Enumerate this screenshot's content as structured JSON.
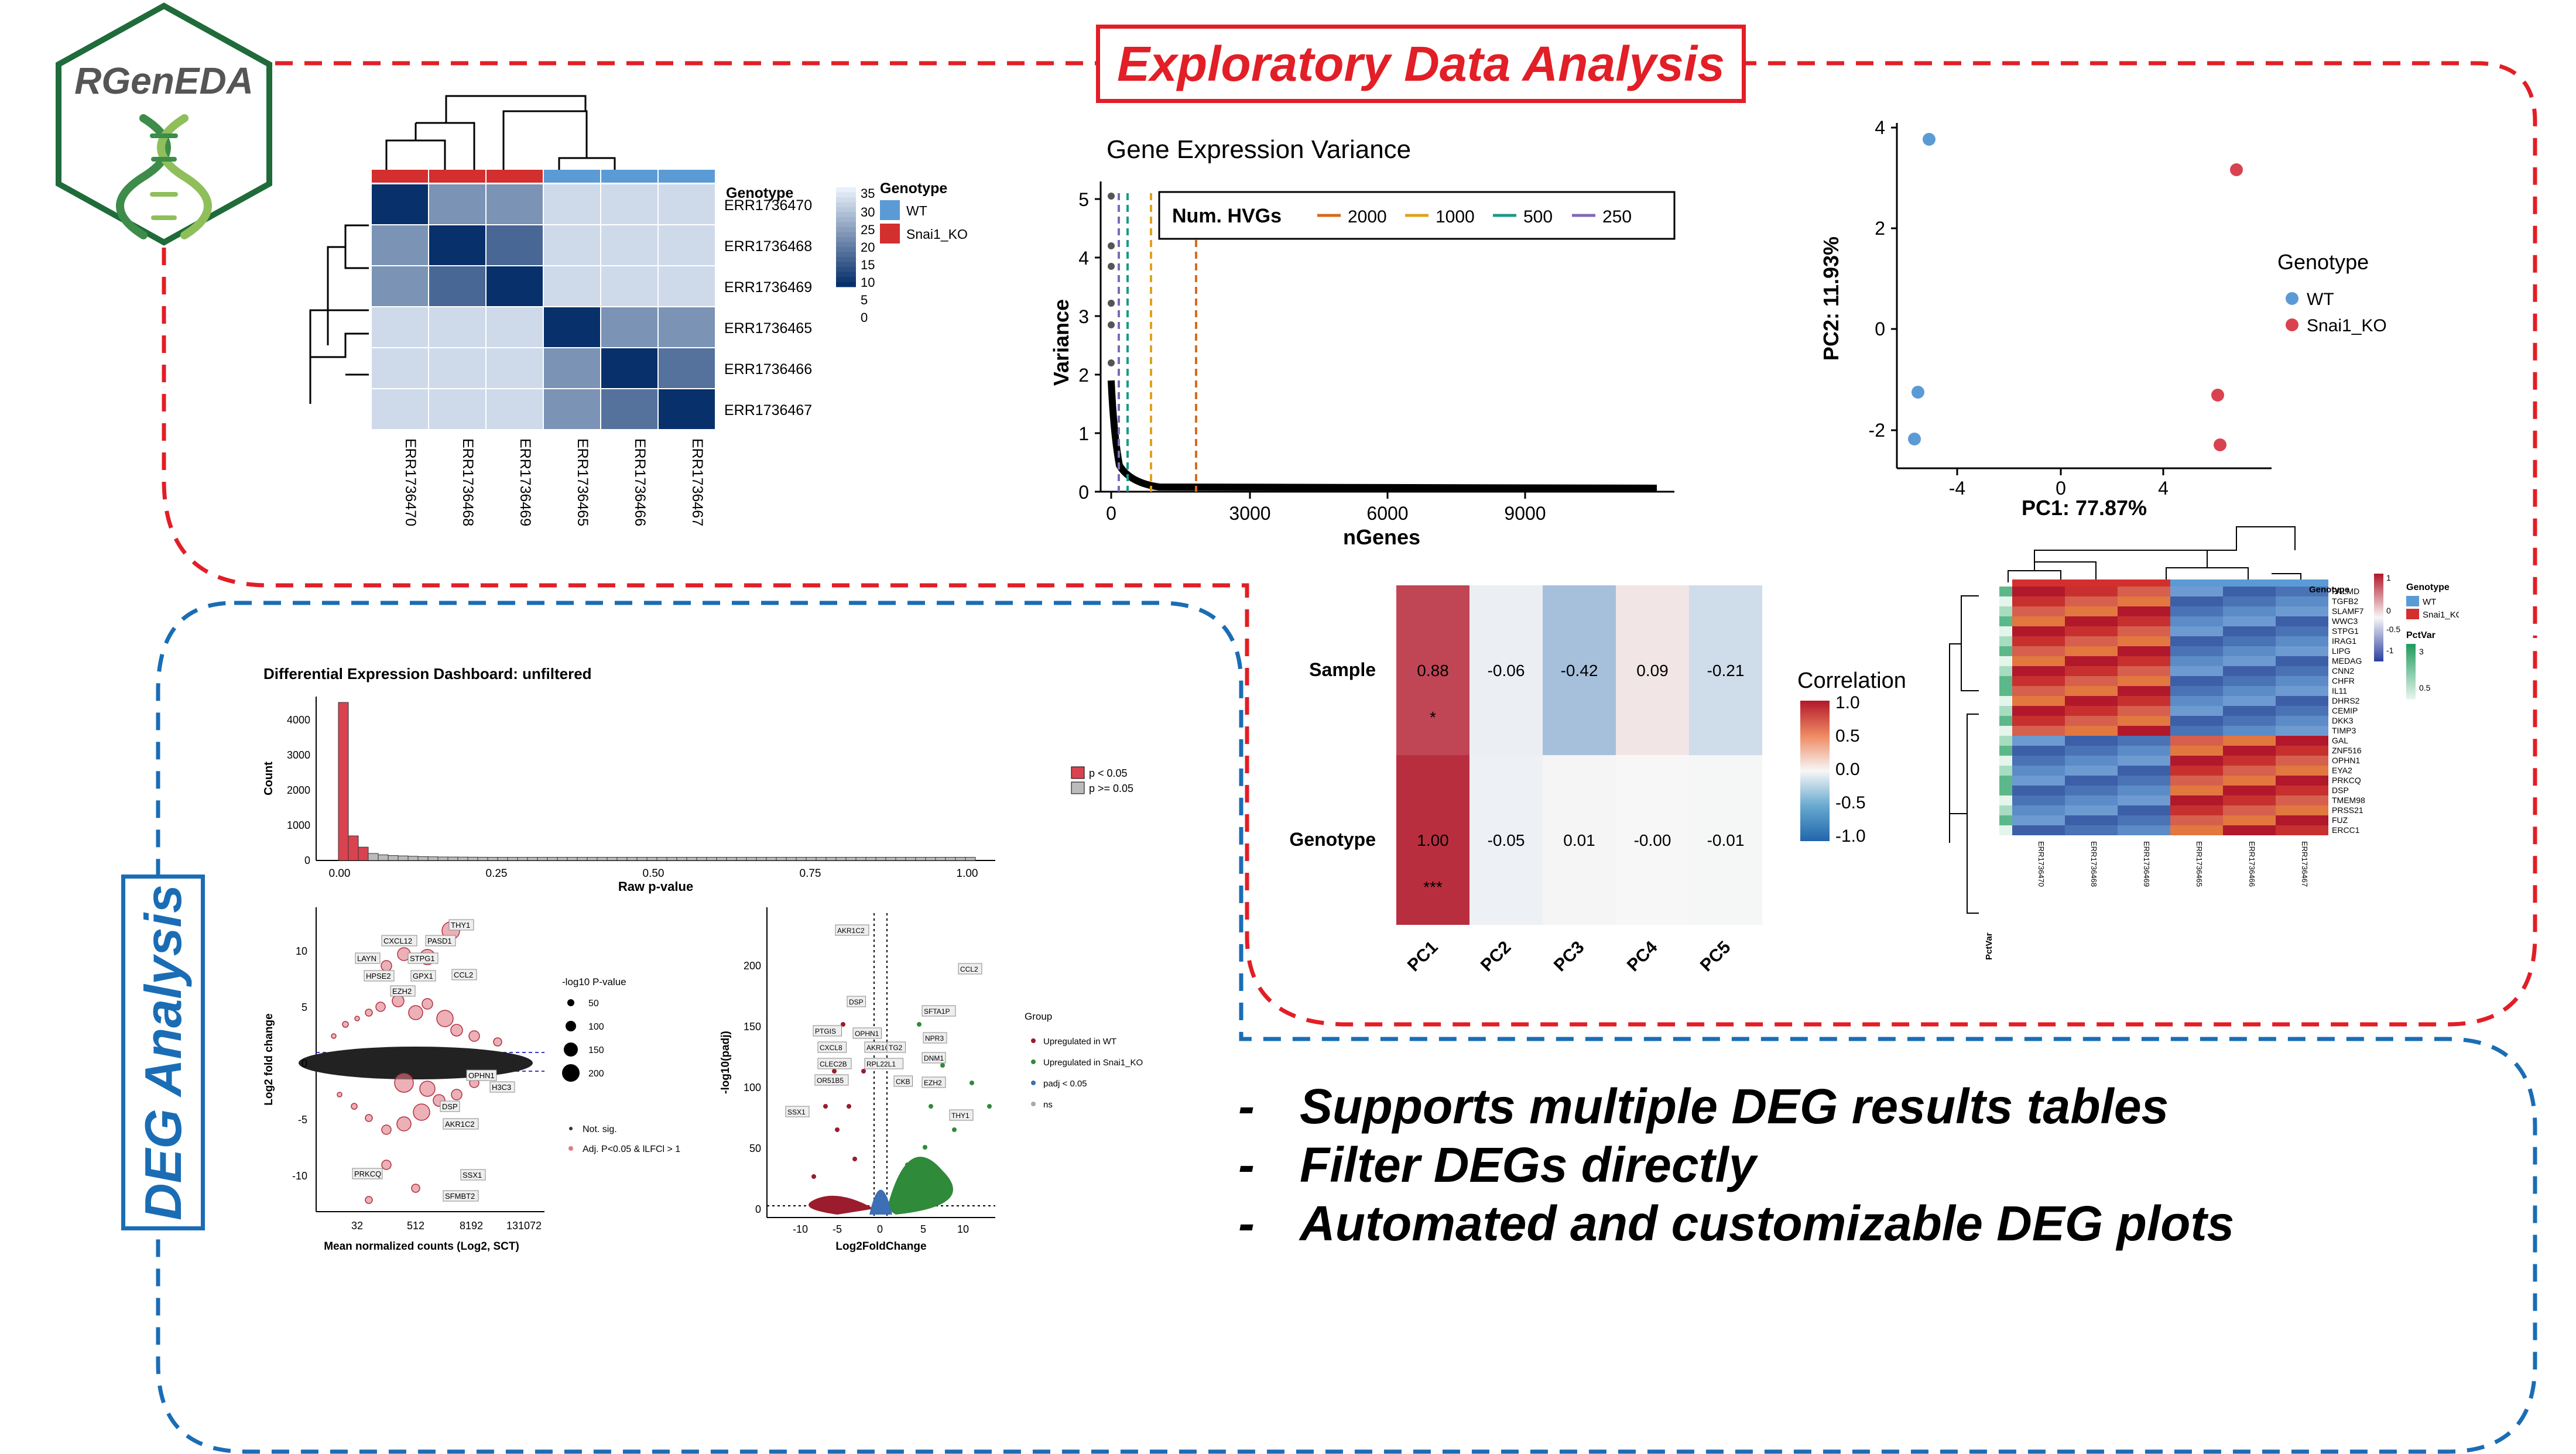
{
  "logo": {
    "text": "RGenEDA"
  },
  "eda_title": "Exploratory Data Analysis",
  "deg_title": "DEG Analysis",
  "bullets": [
    "Supports multiple DEG results tables",
    "Filter DEGs directly",
    "Automated and customizable DEG plots"
  ],
  "colors": {
    "red": "#e21e26",
    "blue": "#1a6db5",
    "wt": "#5b9bd5",
    "ko": "#d32f2f"
  },
  "sample_heatmap": {
    "samples": [
      "ERR1736470",
      "ERR1736468",
      "ERR1736469",
      "ERR1736465",
      "ERR1736466",
      "ERR1736467"
    ],
    "annotation_label": "Genotype",
    "legend_title": "Genotype",
    "legend_items": [
      "WT",
      "Snai1_KO"
    ],
    "scale_ticks": [
      "35",
      "30",
      "25",
      "20",
      "15",
      "10",
      "5",
      "0"
    ],
    "values": [
      [
        0,
        18,
        18,
        31,
        31,
        31
      ],
      [
        18,
        0,
        10,
        31,
        31,
        31
      ],
      [
        18,
        10,
        0,
        31,
        31,
        31
      ],
      [
        31,
        31,
        31,
        0,
        18,
        18
      ],
      [
        31,
        31,
        31,
        18,
        0,
        12
      ],
      [
        31,
        31,
        31,
        18,
        12,
        0
      ]
    ]
  },
  "variance_chart": {
    "title": "Gene Expression Variance",
    "xlabel": "nGenes",
    "ylabel": "Variance",
    "xticks": [
      "0",
      "3000",
      "6000",
      "9000"
    ],
    "yticks": [
      "0",
      "1",
      "2",
      "3",
      "4",
      "5"
    ],
    "legend_title": "Num. HVGs",
    "legend_items": [
      "2000",
      "1000",
      "500",
      "250"
    ]
  },
  "pca_chart": {
    "xlabel": "PC1: 77.87%",
    "ylabel": "PC2: 11.93%",
    "xticks": [
      "-4",
      "0",
      "4"
    ],
    "yticks": [
      "4",
      "2",
      "0",
      "-2"
    ],
    "legend_title": "Genotype",
    "legend_items": [
      "WT",
      "Snai1_KO"
    ]
  },
  "correlation_chart": {
    "rows": [
      "Sample",
      "Genotype"
    ],
    "cols": [
      "PC1",
      "PC2",
      "PC3",
      "PC4",
      "PC5"
    ],
    "values": [
      [
        "0.88",
        "-0.06",
        "-0.42",
        "0.09",
        "-0.21"
      ],
      [
        "1.00",
        "-0.05",
        "0.01",
        "-0.00",
        "-0.01"
      ]
    ],
    "sig": [
      "*",
      "***"
    ],
    "legend_title": "Correlation",
    "legend_ticks": [
      "1.0",
      "0.5",
      "0.0",
      "-0.5",
      "-1.0"
    ]
  },
  "gene_heatmap": {
    "genes": [
      "PALMD",
      "TGFB2",
      "SLAMF7",
      "WWC3",
      "STPG1",
      "IRAG1",
      "LIPG",
      "MEDAG",
      "CNN2",
      "CHFR",
      "IL11",
      "DHRS2",
      "CEMIP",
      "DKK3",
      "TIMP3",
      "GAL",
      "ZNF516",
      "OPHN1",
      "EYA2",
      "PRKCQ",
      "DSP",
      "TMEM98",
      "PRSS21",
      "FUZ",
      "ERCC1"
    ],
    "samples": [
      "ERR1736470",
      "ERR1736468",
      "ERR1736469",
      "ERR1736465",
      "ERR1736466",
      "ERR1736467"
    ],
    "annotation_label": "Genotype",
    "pctvar_label": "PctVar",
    "legend_genotype": "Genotype",
    "legend_items": [
      "WT",
      "Snai1_KO"
    ],
    "legend_pctvar": "PctVar",
    "scale_ticks": [
      "1",
      "0",
      "-0.5",
      "-1"
    ],
    "pctvar_ticks": [
      "3",
      "0.5"
    ]
  },
  "deg_dashboard": {
    "title": "Differential Expression Dashboard: unfiltered",
    "hist_xlabel": "Raw p-value",
    "hist_ylabel": "Count",
    "hist_xticks": [
      "0.00",
      "0.25",
      "0.50",
      "0.75",
      "1.00"
    ],
    "hist_yticks": [
      "4000",
      "3000",
      "2000",
      "1000",
      "0"
    ],
    "hist_legend": [
      "p < 0.05",
      "p >= 0.05"
    ],
    "ma_xlabel": "Mean normalized counts (Log2, SCT)",
    "ma_ylabel": "Log2 fold change",
    "ma_xticks": [
      "32",
      "512",
      "8192",
      "131072"
    ],
    "ma_yticks": [
      "10",
      "5",
      "0",
      "-5",
      "-10"
    ],
    "ma_labels": [
      "THY1",
      "CXCL12",
      "PASD1",
      "LAYN",
      "STPG1",
      "HPSE2",
      "GPX1",
      "CCL2",
      "EZH2",
      "H3C3",
      "OPHN1",
      "DSP",
      "AKR1C2",
      "PRKCQ",
      "SSX1",
      "SFMBT2"
    ],
    "ma_legend_size_title": "-log10 P-value",
    "ma_legend_sizes": [
      "50",
      "100",
      "150",
      "200"
    ],
    "ma_legend_sig": [
      "Not. sig.",
      "Adj. P<0.05 & lLFCl > 1"
    ],
    "volcano_xlabel": "Log2FoldChange",
    "volcano_ylabel": "-log10(padj)",
    "volcano_xticks": [
      "-10",
      "-5",
      "0",
      "5",
      "10"
    ],
    "volcano_yticks": [
      "200",
      "150",
      "100",
      "50",
      "0"
    ],
    "volcano_labels": [
      "AKR1C2",
      "CCL2",
      "DSP",
      "SFTA1P",
      "PTGIS",
      "OPHN1",
      "NPR3",
      "CXCL8",
      "AKR1C1",
      "TG2",
      "CLEC2B",
      "RPL22L1",
      "DNM1",
      "OR51B5",
      "CKB",
      "SSX1",
      "EZH2",
      "THY1"
    ],
    "volcano_legend_title": "Group",
    "volcano_legend_items": [
      "Upregulated in WT",
      "Upregulated in Snai1_KO",
      "padj < 0.05",
      "ns"
    ]
  }
}
